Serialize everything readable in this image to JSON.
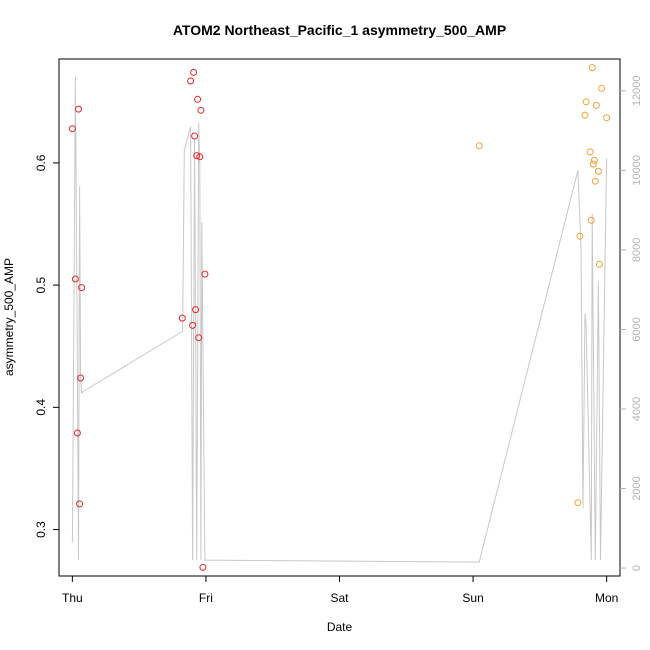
{
  "chart_data": {
    "type": "scatter",
    "title": "ATOM2 Northeast_Pacific_1 asymmetry_500_AMP",
    "xlabel": "Date",
    "ylabel": "asymmetry_500_AMP",
    "x_ticks": [
      {
        "label": "Thu",
        "day": 0
      },
      {
        "label": "Fri",
        "day": 1
      },
      {
        "label": "Sat",
        "day": 2
      },
      {
        "label": "Sun",
        "day": 3
      },
      {
        "label": "Mon",
        "day": 4
      }
    ],
    "xlim": [
      -0.1,
      4.1
    ],
    "ylim": [
      0.262,
      0.685
    ],
    "y_ticks": [
      0.3,
      0.4,
      0.5,
      0.6
    ],
    "y2lim": [
      -200,
      12800
    ],
    "y2_ticks": [
      0,
      2000,
      4000,
      6000,
      8000,
      10000,
      12000
    ],
    "colors": {
      "series_red": "#e8262b",
      "series_orange": "#f5a033",
      "line": "#c8c8c8",
      "axis": "#000000",
      "right_axis": "#b3b3b3"
    },
    "series": [
      {
        "color": "red",
        "points": [
          [
            0.0,
            0.628
          ],
          [
            0.023,
            0.505
          ],
          [
            0.038,
            0.379
          ],
          [
            0.046,
            0.644
          ],
          [
            0.054,
            0.321
          ],
          [
            0.062,
            0.424
          ],
          [
            0.069,
            0.498
          ],
          [
            0.823,
            0.473
          ],
          [
            0.885,
            0.667
          ],
          [
            0.9,
            0.467
          ],
          [
            0.908,
            0.674
          ],
          [
            0.915,
            0.622
          ],
          [
            0.923,
            0.48
          ],
          [
            0.931,
            0.606
          ],
          [
            0.938,
            0.652
          ],
          [
            0.946,
            0.457
          ],
          [
            0.954,
            0.605
          ],
          [
            0.962,
            0.643
          ],
          [
            0.977,
            0.269
          ],
          [
            0.992,
            0.509
          ]
        ]
      },
      {
        "color": "orange",
        "points": [
          [
            3.046,
            0.614
          ],
          [
            3.785,
            0.322
          ],
          [
            3.8,
            0.54
          ],
          [
            3.838,
            0.639
          ],
          [
            3.846,
            0.65
          ],
          [
            3.877,
            0.609
          ],
          [
            3.885,
            0.553
          ],
          [
            3.892,
            0.678
          ],
          [
            3.9,
            0.599
          ],
          [
            3.908,
            0.602
          ],
          [
            3.915,
            0.585
          ],
          [
            3.923,
            0.647
          ],
          [
            3.938,
            0.593
          ],
          [
            3.946,
            0.517
          ],
          [
            3.962,
            0.661
          ],
          [
            4.0,
            0.637
          ]
        ]
      }
    ],
    "line_series": {
      "axis": "right",
      "points": [
        [
          0.0,
          650
        ],
        [
          0.023,
          12350
        ],
        [
          0.038,
          4900
        ],
        [
          0.046,
          200
        ],
        [
          0.054,
          9600
        ],
        [
          0.062,
          4800
        ],
        [
          0.069,
          4400
        ],
        [
          0.085,
          4450
        ],
        [
          0.825,
          5950
        ],
        [
          0.838,
          10500
        ],
        [
          0.885,
          11100
        ],
        [
          0.9,
          200
        ],
        [
          0.915,
          10800
        ],
        [
          0.931,
          200
        ],
        [
          0.946,
          11200
        ],
        [
          0.954,
          10100
        ],
        [
          0.962,
          200
        ],
        [
          0.969,
          8700
        ],
        [
          0.992,
          200
        ],
        [
          3.046,
          150
        ],
        [
          3.785,
          10000
        ],
        [
          3.808,
          8050
        ],
        [
          3.823,
          1500
        ],
        [
          3.838,
          6400
        ],
        [
          3.846,
          6100
        ],
        [
          3.885,
          200
        ],
        [
          3.892,
          8900
        ],
        [
          3.915,
          200
        ],
        [
          3.938,
          7200
        ],
        [
          3.954,
          200
        ],
        [
          4.0,
          10300
        ]
      ]
    },
    "grid": false,
    "legend": "none"
  }
}
